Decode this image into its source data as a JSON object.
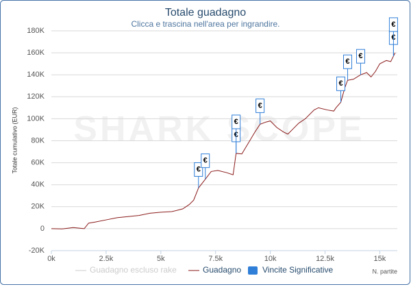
{
  "chart_data": {
    "type": "line",
    "title": "Totale guadagno",
    "subtitle": "Clicca e trascina nell'area per ingrandire.",
    "watermark": "SHARK SCOPE",
    "y_axis_label": "Totale cumulativo (EUR)",
    "x_axis_label": "N. partite",
    "xlim": [
      0,
      15800
    ],
    "ylim": [
      -20000,
      180000
    ],
    "xticks": [
      {
        "value": 0,
        "label": "0k"
      },
      {
        "value": 2500,
        "label": "2.5k"
      },
      {
        "value": 5000,
        "label": "5k"
      },
      {
        "value": 7500,
        "label": "7.5k"
      },
      {
        "value": 10000,
        "label": "10k"
      },
      {
        "value": 12500,
        "label": "12.5k"
      },
      {
        "value": 15000,
        "label": "15k"
      }
    ],
    "yticks": [
      {
        "value": -20000,
        "label": "-20K"
      },
      0,
      {
        "value": 20000,
        "label": "20K"
      },
      {
        "value": 40000,
        "label": "40K"
      },
      {
        "value": 60000,
        "label": "60K"
      },
      {
        "value": 80000,
        "label": "80K"
      },
      {
        "value": 100000,
        "label": "100K"
      },
      {
        "value": 120000,
        "label": "120K"
      },
      {
        "value": 140000,
        "label": "140K"
      },
      {
        "value": 160000,
        "label": "160K"
      },
      {
        "value": 180000,
        "label": "180K"
      }
    ],
    "grid": true,
    "series": [
      {
        "name": "Guadagno escluso rake",
        "color": "#cccccc",
        "visible": false
      },
      {
        "name": "Guadagno",
        "color": "#8b1a1a",
        "x": [
          0,
          500,
          1000,
          1500,
          1700,
          2000,
          2500,
          3000,
          3500,
          4000,
          4500,
          5000,
          5500,
          6000,
          6300,
          6500,
          6719,
          7031,
          7300,
          7600,
          8000,
          8300,
          8437,
          8700,
          9000,
          9300,
          9531,
          9800,
          10000,
          10300,
          10600,
          10800,
          11000,
          11300,
          11600,
          12000,
          12200,
          12600,
          12900,
          13000,
          13219,
          13400,
          13531,
          13800,
          14125,
          14400,
          14600,
          14800,
          15000,
          15300,
          15500,
          15625,
          15700
        ],
        "values": [
          0,
          -200,
          1000,
          0,
          5000,
          6000,
          8000,
          10000,
          11000,
          12000,
          14000,
          15000,
          15500,
          18000,
          22000,
          26000,
          37000,
          45000,
          52000,
          53000,
          51000,
          49000,
          68500,
          68000,
          78000,
          88000,
          95000,
          97000,
          98000,
          92000,
          88000,
          86000,
          90000,
          96000,
          100000,
          108000,
          110000,
          108000,
          107000,
          110000,
          115000,
          128000,
          135000,
          136000,
          140000,
          142000,
          138000,
          143000,
          150000,
          153000,
          152000,
          157000,
          160000
        ]
      },
      {
        "name": "Vincite Significative",
        "type": "flags",
        "color": "#2f7ed8",
        "flag_text": "€",
        "x": [
          6719,
          7031,
          8437,
          8437,
          9531,
          13219,
          13531,
          14125,
          15625,
          15625
        ],
        "values": [
          37000,
          45000,
          68500,
          68500,
          95000,
          115000,
          135000,
          140000,
          157000,
          157000
        ]
      }
    ]
  }
}
